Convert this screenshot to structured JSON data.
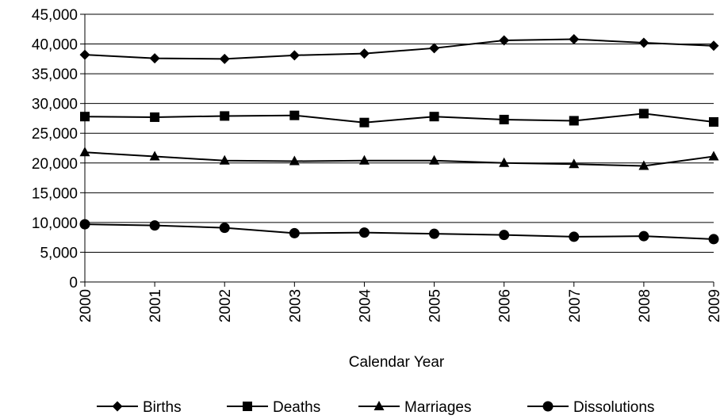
{
  "chart_data": {
    "type": "line",
    "title": "",
    "xlabel": "Calendar Year",
    "ylabel": "",
    "categories": [
      "2000",
      "2001",
      "2002",
      "2003",
      "2004",
      "2005",
      "2006",
      "2007",
      "2008",
      "2009"
    ],
    "ylim": [
      0,
      45000
    ],
    "yticks": [
      0,
      5000,
      10000,
      15000,
      20000,
      25000,
      30000,
      35000,
      40000,
      45000
    ],
    "ytick_labels": [
      "0",
      "5,000",
      "10,000",
      "15,000",
      "20,000",
      "25,000",
      "30,000",
      "35,000",
      "40,000",
      "45,000"
    ],
    "grid": "horizontal",
    "legend_position": "bottom",
    "series": [
      {
        "name": "Births",
        "marker": "diamond",
        "color": "#000000",
        "values": [
          38200,
          37600,
          37500,
          38100,
          38400,
          39300,
          40600,
          40800,
          40200,
          39700
        ]
      },
      {
        "name": "Deaths",
        "marker": "square",
        "color": "#000000",
        "values": [
          27800,
          27700,
          27900,
          28000,
          26800,
          27800,
          27300,
          27100,
          28300,
          26900
        ]
      },
      {
        "name": "Marriages",
        "marker": "triangle",
        "color": "#000000",
        "values": [
          21800,
          21100,
          20400,
          20300,
          20400,
          20400,
          20000,
          19800,
          19500,
          21100
        ]
      },
      {
        "name": "Dissolutions",
        "marker": "circle",
        "color": "#000000",
        "values": [
          9700,
          9500,
          9100,
          8200,
          8300,
          8100,
          7900,
          7600,
          7700,
          7200
        ]
      }
    ]
  }
}
